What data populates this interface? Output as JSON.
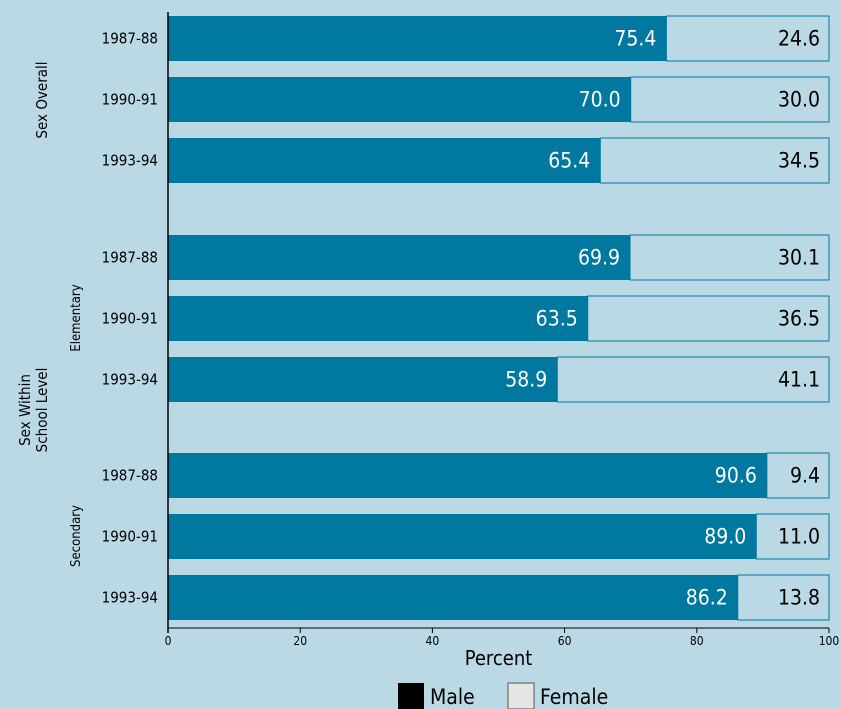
{
  "chart_data": {
    "type": "bar",
    "orientation": "horizontal",
    "stacked": true,
    "xlabel": "Percent",
    "xlim": [
      0,
      100
    ],
    "xticks": [
      0,
      20,
      40,
      60,
      80,
      100
    ],
    "groups": [
      {
        "label": "Sex Overall",
        "sublabel": ""
      },
      {
        "label": "",
        "sublabel": "Elementary"
      },
      {
        "label": "",
        "sublabel": "Secondary"
      }
    ],
    "shared_group_label": "Sex Within School Level",
    "rows": [
      {
        "group": 0,
        "year": "1987-88",
        "male": 75.4,
        "female": 24.6
      },
      {
        "group": 0,
        "year": "1990-91",
        "male": 70.0,
        "female": 30.0
      },
      {
        "group": 0,
        "year": "1993-94",
        "male": 65.4,
        "female": 34.5
      },
      {
        "group": 1,
        "year": "1987-88",
        "male": 69.9,
        "female": 30.1
      },
      {
        "group": 1,
        "year": "1990-91",
        "male": 63.5,
        "female": 36.5
      },
      {
        "group": 1,
        "year": "1993-94",
        "male": 58.9,
        "female": 41.1
      },
      {
        "group": 2,
        "year": "1987-88",
        "male": 90.6,
        "female": 9.4
      },
      {
        "group": 2,
        "year": "1990-91",
        "male": 89.0,
        "female": 11.0
      },
      {
        "group": 2,
        "year": "1993-94",
        "male": 86.2,
        "female": 13.8
      }
    ],
    "series": [
      {
        "name": "Male",
        "color": "#0078a0",
        "legend_color": "#000000"
      },
      {
        "name": "Female",
        "color": "#bad9e5",
        "legend_color": "#e6e6e6"
      }
    ],
    "legend_position": "bottom",
    "background_color": "#bad9e5",
    "grid": false
  }
}
